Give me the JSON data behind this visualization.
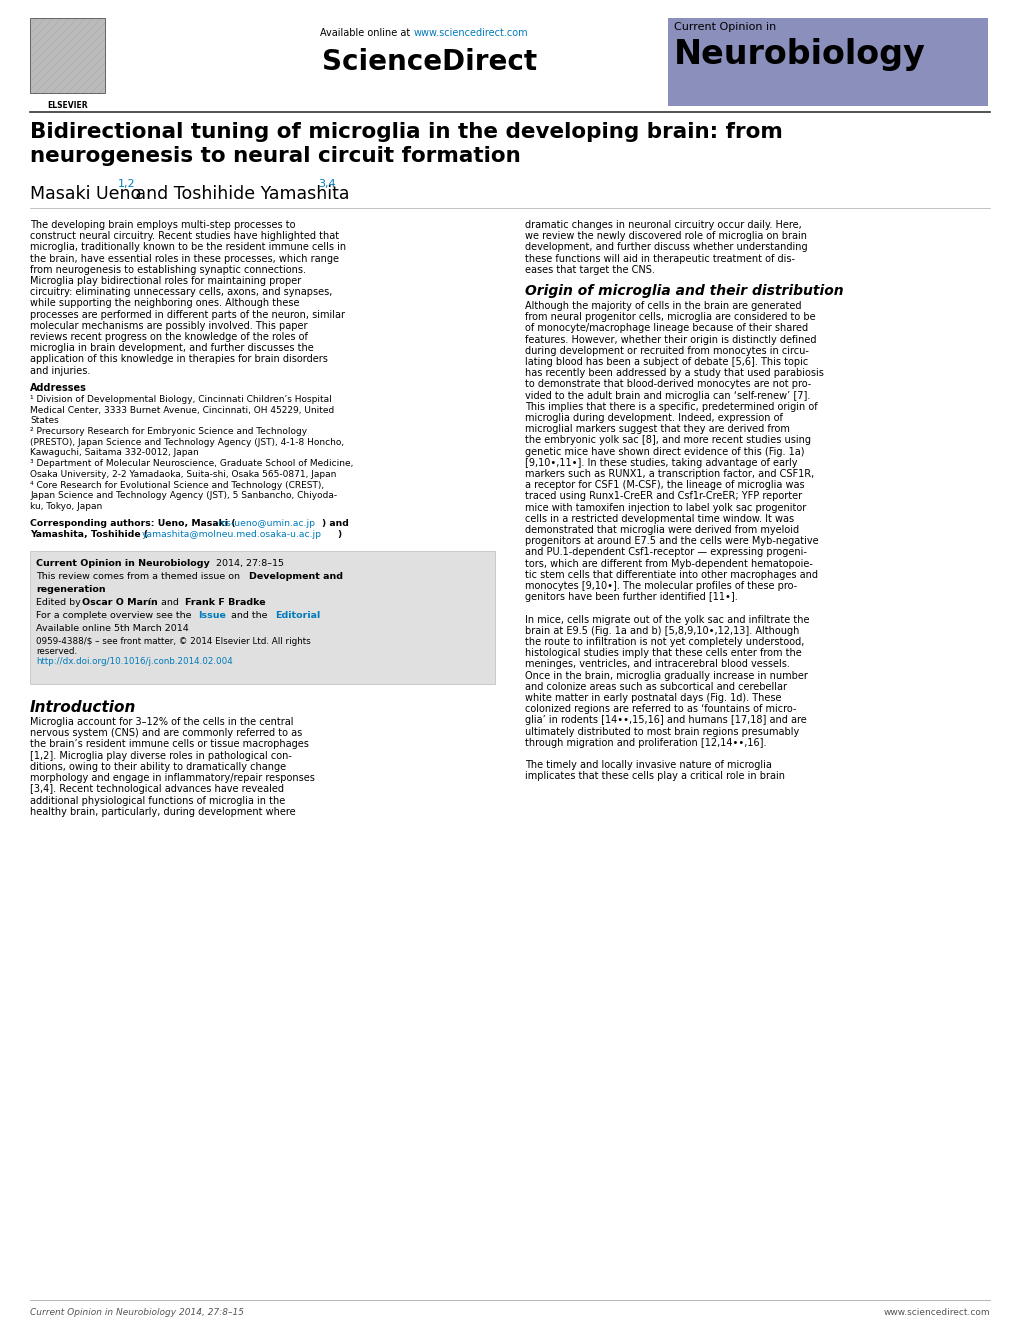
{
  "page_bg": "#ffffff",
  "header": {
    "available_text": "Available online at ",
    "url_text": "www.sciencedirect.com",
    "url_color": "#007bbb",
    "sciencedirect_text": "ScienceDirect",
    "journal_box_color": "#8b8fbc",
    "journal_label": "Current Opinion in",
    "journal_name": "Neurobiology"
  },
  "title": "Bidirectional tuning of microglia in the developing brain: from\nneurogenesis to neural circuit formation",
  "authors": "Masaki Ueno",
  "authors_sup1": "1,2",
  "authors_mid": " and Toshihide Yamashita",
  "authors_sup2": "3,4",
  "email1": "ms-ueno@umin.ac.jp",
  "email2": "yamashita@molneu.med.osaka-u.ac.jp",
  "email_color": "#007bbb",
  "info_box_bg": "#e0e0e0",
  "info_journal": "Current Opinion in Neurobiology",
  "info_year": " 2014, 27:8–15",
  "info_available": "Available online 5th March 2014",
  "info_issn": "0959-4388/$ – see front matter, © 2014 Elsevier Ltd. All rights",
  "info_issn2": "reserved.",
  "info_doi_label": "http://dx.doi.org/10.1016/j.conb.2014.02.004",
  "footer_left": "Current Opinion in Neurobiology 2014, 27:8–15",
  "footer_right": "www.sciencedirect.com",
  "footer_color": "#555555",
  "address1": "¹ Division of Developmental Biology, Cincinnati Children’s Hospital Medical Center, 3333 Burnet Avenue, Cincinnati, OH 45229, United States",
  "address2": "² Precursory Research for Embryonic Science and Technology (PRESTO), Japan Science and Technology Agency (JST), 4-1-8 Honcho, Kawaguchi, Saitama 332-0012, Japan",
  "address3": "³ Department of Molecular Neuroscience, Graduate School of Medicine, Osaka University, 2-2 Yamadaoka, Suita-shi, Osaka 565-0871, Japan",
  "address4": "⁴ Core Research for Evolutional Science and Technology (CREST), Japan Science and Technology Agency (JST), 5 Sanbancho, Chiyoda-ku, Tokyo, Japan"
}
